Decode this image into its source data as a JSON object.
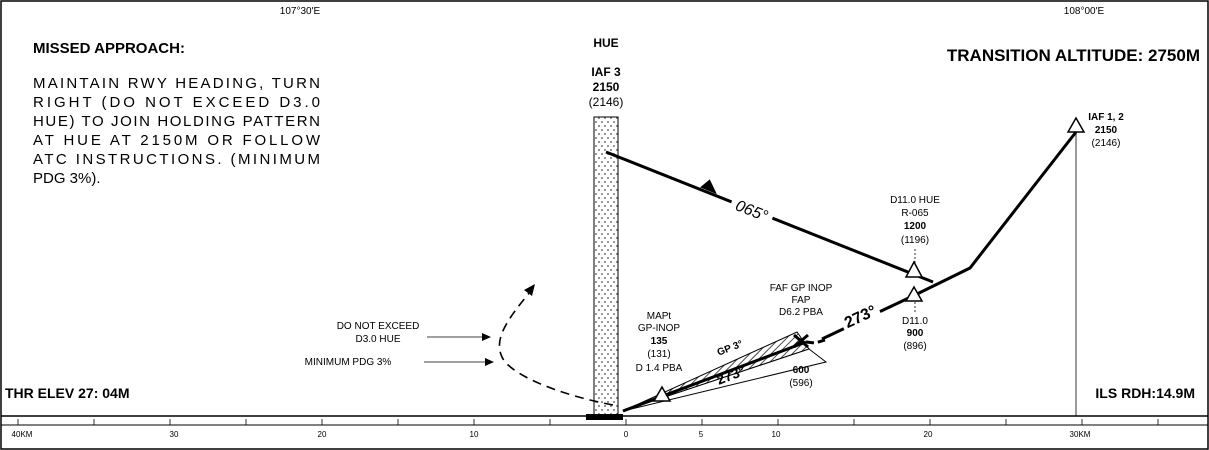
{
  "header": {
    "lon_left": "107°30'E",
    "lon_right": "108°00'E"
  },
  "missed_approach": {
    "title": "MISSED APPROACH:",
    "lines": [
      "MAINTAIN RWY HEADING, TURN",
      "RIGHT (DO NOT EXCEED D3.0",
      "HUE) TO JOIN HOLDING PATTERN",
      "AT HUE AT 2150M OR FOLLOW",
      "ATC INSTRUCTIONS. (MINIMUM",
      "PDG 3%)."
    ]
  },
  "transition_altitude": "TRANSITION ALTITUDE: 2750M",
  "hue": {
    "name": "HUE",
    "fix": "IAF 3",
    "alt": "2150",
    "alt_ft": "(2146)"
  },
  "iaf12": {
    "name": "IAF 1, 2",
    "alt": "2150",
    "alt_ft": "(2146)"
  },
  "course_065": "065°",
  "d11_hue": {
    "l1": "D11.0 HUE",
    "l2": "R-065",
    "alt": "1200",
    "alt_ft": "(1196)"
  },
  "faf": {
    "l1": "FAF GP INOP",
    "l2": "FAP",
    "l3": "D6.2 PBA"
  },
  "course_273_a": "273°",
  "d11": {
    "l1": "D11.0",
    "alt": "900",
    "alt_ft": "(896)"
  },
  "mapt": {
    "l1": "MAPt",
    "l2": "GP-INOP",
    "alt": "135",
    "alt_ft": "(131)",
    "dist": "D 1.4 PBA"
  },
  "gp": "GP 3°",
  "course_273_b": "273°",
  "gp_alt": {
    "alt": "600",
    "alt_ft": "(596)"
  },
  "do_not_exceed": {
    "l1": "DO NOT EXCEED",
    "l2": "D3.0 HUE"
  },
  "min_pdg": "MINIMUM PDG 3%",
  "thr_elev": "THR ELEV 27: 04M",
  "ils_rdh": "ILS RDH:14.9M",
  "scale": {
    "labels": [
      "40KM",
      "30",
      "20",
      "10",
      "0",
      "5",
      "10",
      "20",
      "30KM"
    ]
  }
}
